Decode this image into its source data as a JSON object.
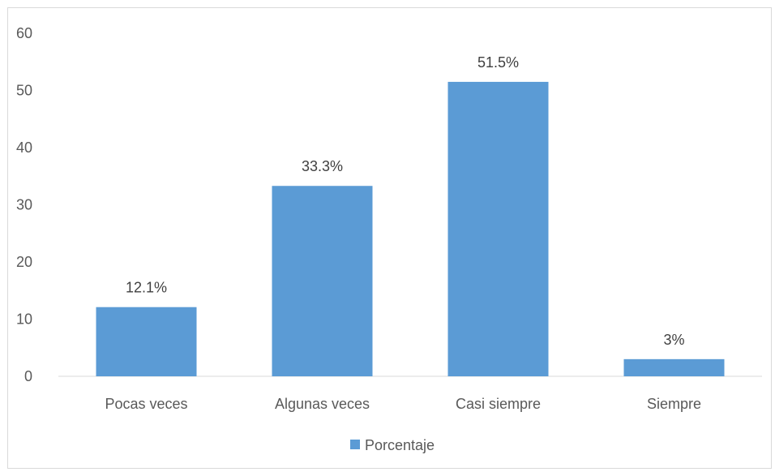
{
  "chart_data": {
    "type": "bar",
    "categories": [
      "Pocas veces",
      "Algunas veces",
      "Casi siempre",
      "Siempre"
    ],
    "series": [
      {
        "name": "Porcentaje",
        "values": [
          12.1,
          33.3,
          51.5,
          3
        ],
        "data_labels": [
          "12.1%",
          "33.3%",
          "51.5%",
          "3%"
        ],
        "color": "#5b9bd5"
      }
    ],
    "title": "",
    "xlabel": "",
    "ylabel": "",
    "ylim": [
      0,
      60
    ],
    "yticks": [
      0,
      10,
      20,
      30,
      40,
      50,
      60
    ],
    "grid": false,
    "legend": "bottom-center"
  }
}
